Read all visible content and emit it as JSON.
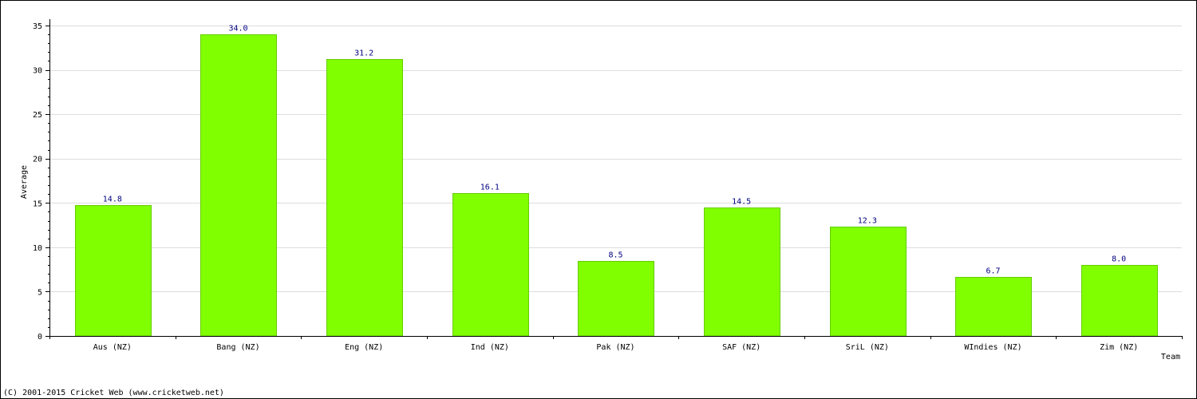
{
  "chart_data": {
    "type": "bar",
    "categories": [
      "Aus (NZ)",
      "Bang (NZ)",
      "Eng (NZ)",
      "Ind (NZ)",
      "Pak (NZ)",
      "SAF (NZ)",
      "SriL (NZ)",
      "WIndies (NZ)",
      "Zim (NZ)"
    ],
    "values": [
      14.8,
      34.0,
      31.2,
      16.1,
      8.5,
      14.5,
      12.3,
      6.7,
      8.0
    ],
    "value_labels": [
      "14.8",
      "34.0",
      "31.2",
      "16.1",
      "8.5",
      "14.5",
      "12.3",
      "6.7",
      "8.0"
    ],
    "xlabel": "Team",
    "ylabel": "Average",
    "ylim": [
      0,
      35
    ],
    "yticks": [
      0,
      5,
      10,
      15,
      20,
      25,
      30,
      35
    ],
    "grid": true,
    "legend": "none",
    "colors": {
      "bar_fill": "#80ff00",
      "bar_stroke": "#66cc00",
      "value_label": "#000080",
      "grid": "#dddddd",
      "axis": "#000000"
    }
  },
  "footer": {
    "copyright": "(C) 2001-2015 Cricket Web (www.cricketweb.net)"
  }
}
